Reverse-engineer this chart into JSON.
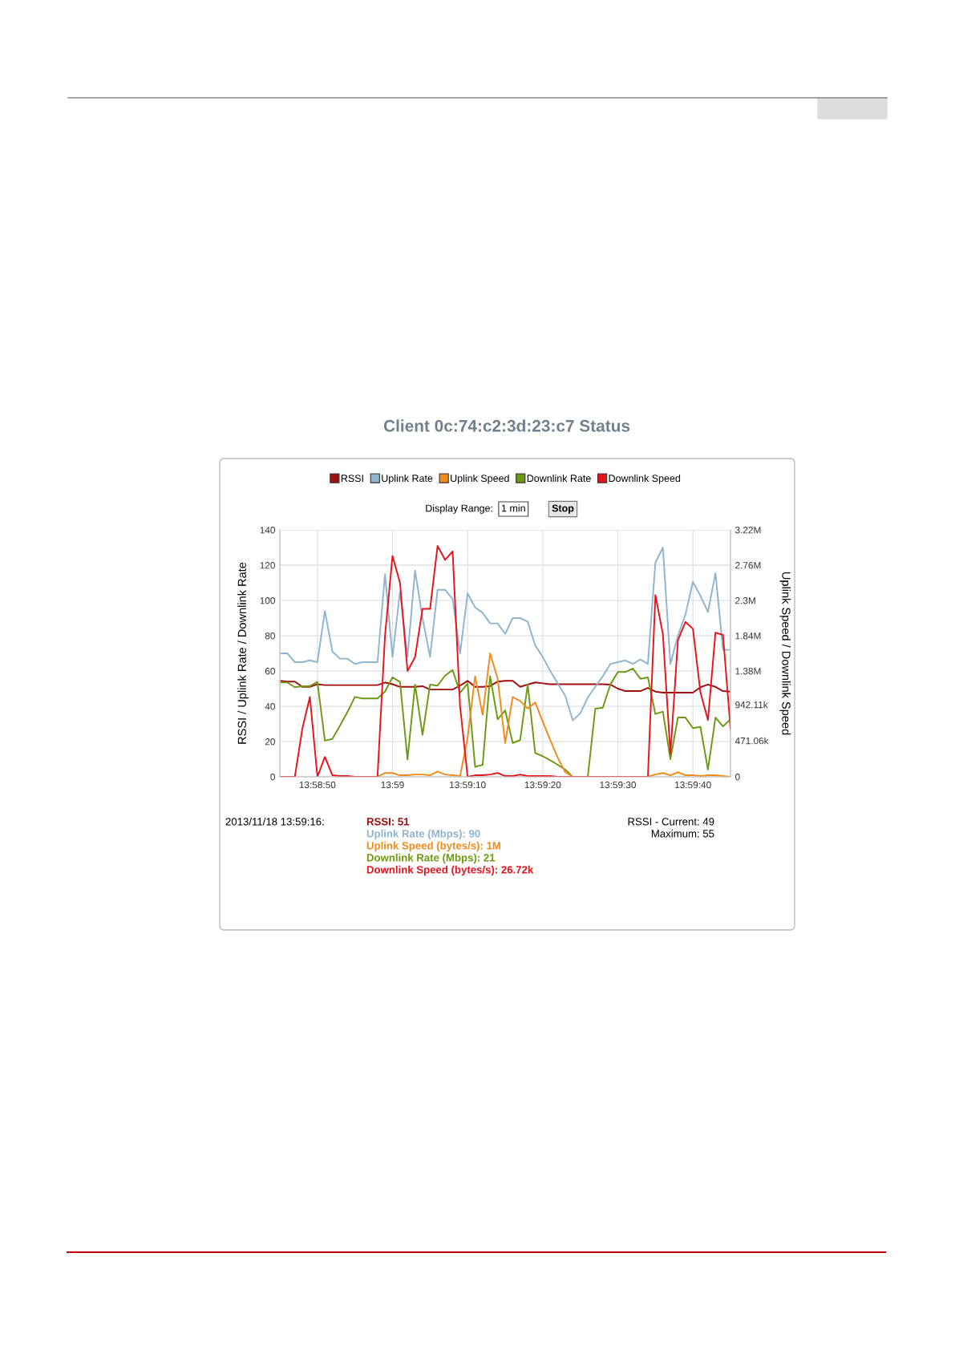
{
  "chart_data": {
    "type": "line",
    "title": "Client 0c:74:c2:3d:23:c7 Status",
    "ylabel": "RSSI / Uplink Rate / Downlink Rate",
    "y2label": "Uplink Speed / Downlink Speed",
    "x": [
      13.979167,
      13.979444,
      13.979722,
      13.98,
      13.980278,
      13.980556,
      13.980833,
      13.981111,
      13.981389,
      13.981667,
      13.981944,
      13.982222,
      13.9825,
      13.982778,
      13.983056,
      13.983333,
      13.983611,
      13.983889,
      13.984167,
      13.984444,
      13.984722,
      13.985,
      13.985278,
      13.985556,
      13.985833,
      13.986111,
      13.986389,
      13.986667,
      13.986944,
      13.987222,
      13.9875,
      13.987778,
      13.988056,
      13.988333,
      13.988611,
      13.988889,
      13.989167,
      13.989444,
      13.989722,
      13.99,
      13.990278,
      13.990556,
      13.990833,
      13.991111,
      13.991389,
      13.991667,
      13.991944,
      13.992222,
      13.9925,
      13.992778,
      13.993056,
      13.993333,
      13.993611,
      13.993889,
      13.994167,
      13.994444,
      13.994722,
      13.995,
      13.995278,
      13.995556,
      13.995833
    ],
    "series": [
      {
        "name": "RSSI",
        "color": "#a00d0d",
        "values": [
          54.4,
          54,
          54,
          51,
          51,
          52.5,
          52,
          52,
          52,
          52,
          52,
          52,
          52,
          52,
          53.5,
          52.5,
          51,
          51,
          51,
          51.4,
          49.5,
          49.5,
          49.5,
          49.5,
          51.7,
          54.4,
          51,
          51,
          51.4,
          54,
          54.4,
          54.4,
          51,
          52.3,
          53.5,
          53,
          52.5,
          52.5,
          52.5,
          52.5,
          52.5,
          52.5,
          52.5,
          52.5,
          52.3,
          50,
          48.6,
          48.6,
          48.6,
          50.4,
          48.3,
          47.7,
          47.7,
          47.7,
          47.7,
          47.7,
          50.8,
          52.3,
          51,
          48.6,
          48.3
        ]
      },
      {
        "name": "Uplink Rate",
        "color": "#8fb4d0",
        "values": [
          70,
          70,
          65,
          65,
          66,
          65,
          94,
          71,
          67,
          67,
          64,
          65,
          65,
          65,
          115,
          68,
          105,
          68,
          117,
          90,
          68,
          106,
          106,
          101,
          70,
          104,
          96,
          93,
          87,
          87,
          81,
          90,
          90,
          88,
          74.5,
          68,
          60,
          53,
          46,
          32,
          36,
          45,
          51,
          57,
          64,
          65,
          66,
          64,
          66.5,
          64,
          121.5,
          130,
          64,
          80,
          92,
          110.6,
          102.6,
          93.5,
          115.5,
          72,
          72
        ]
      },
      {
        "name": "Uplink Speed",
        "color": "#f28a1c",
        "axis": "y2",
        "values": [
          null,
          null,
          null,
          null,
          null,
          null,
          null,
          null,
          null,
          null,
          null,
          null,
          0,
          0,
          50000,
          50000,
          20000,
          20000,
          30000,
          30000,
          20000,
          70000,
          30000,
          20000,
          10000,
          510000,
          1310000,
          810000,
          1610000,
          1280000,
          440000,
          1040000,
          990000,
          890000,
          970000,
          720000,
          480000,
          250000,
          60000,
          0,
          0,
          0,
          0,
          0,
          0,
          0,
          0,
          0,
          0,
          0,
          30000,
          50000,
          20000,
          60000,
          20000,
          20000,
          10000,
          20000,
          20000,
          10000,
          0
        ]
      },
      {
        "name": "Downlink Rate",
        "color": "#6b9a12",
        "values": [
          53.5,
          53.5,
          50.8,
          51.4,
          51.4,
          53.8,
          20.5,
          21.5,
          29,
          36.7,
          45.3,
          44.4,
          44.4,
          44.4,
          48.3,
          56.4,
          53.8,
          9.8,
          52.3,
          23.8,
          52.3,
          51.7,
          57.4,
          60.5,
          47.7,
          52.9,
          5.6,
          6.8,
          57,
          32.6,
          37.7,
          19.2,
          20.8,
          52.3,
          13.5,
          11.7,
          9.4,
          6.8,
          4.1,
          0,
          0,
          0,
          38.6,
          39.2,
          52.3,
          59.4,
          59.4,
          61.4,
          55.6,
          56.4,
          35.6,
          37,
          10,
          33.6,
          33.6,
          27.6,
          28.3,
          4.1,
          33.6,
          28.6,
          32.6
        ]
      },
      {
        "name": "Downlink Speed",
        "color": "#e8141c",
        "axis": "y2",
        "values": [
          0,
          0,
          0,
          630000,
          1040000,
          0,
          260000,
          20000,
          10000,
          10000,
          0,
          0,
          0,
          0,
          1840000,
          2880000,
          2530000,
          1380000,
          1560000,
          2190000,
          2190000,
          3010000,
          2830000,
          2940000,
          920000,
          0,
          20000,
          20000,
          30000,
          50000,
          10000,
          10000,
          30000,
          10000,
          10000,
          10000,
          10000,
          0,
          0,
          0,
          0,
          0,
          0,
          0,
          0,
          0,
          0,
          0,
          0,
          0,
          2370000,
          1860000,
          300000,
          1780000,
          2020000,
          1930000,
          1100000,
          740000,
          1880000,
          1850000,
          630000
        ]
      }
    ],
    "xlim": [
      13.979167,
      13.995833
    ],
    "xticks": [
      {
        "value": 13.980556,
        "label": "13:58:50"
      },
      {
        "value": 13.983333,
        "label": "13:59"
      },
      {
        "value": 13.986111,
        "label": "13:59:10"
      },
      {
        "value": 13.988889,
        "label": "13:59:20"
      },
      {
        "value": 13.991667,
        "label": "13:59:30"
      },
      {
        "value": 13.994444,
        "label": "13:59:40"
      }
    ],
    "ylim": [
      0,
      140
    ],
    "yticks": [
      0,
      20,
      40,
      60,
      80,
      100,
      120,
      140
    ],
    "y2lim": [
      0,
      3220000
    ],
    "y2ticks": [
      0,
      {
        "value": 471060,
        "label": "471.06k"
      },
      {
        "value": 942110,
        "label": "942.11k"
      },
      {
        "value": 1380000,
        "label": "1.38M"
      },
      {
        "value": 1840000,
        "label": "1.84M"
      },
      {
        "value": 2300000,
        "label": "2.3M"
      },
      {
        "value": 2760000,
        "label": "2.76M"
      },
      {
        "value": 3220000,
        "label": "3.22M"
      }
    ],
    "grid": true,
    "legend": "top",
    "line_style": "solid",
    "marker": "none",
    "annotations": [
      "Display Range:",
      "1 min",
      "Stop",
      "2013/11/18 13:59:16:",
      "RSSI: 51",
      "Uplink Rate (Mbps): 90",
      "Uplink Speed (bytes/s): 1M",
      "Downlink Rate (Mbps): 21",
      "Downlink Speed (bytes/s): 26.72k",
      "RSSI - Current: 49",
      "Maximum: 55"
    ]
  }
}
